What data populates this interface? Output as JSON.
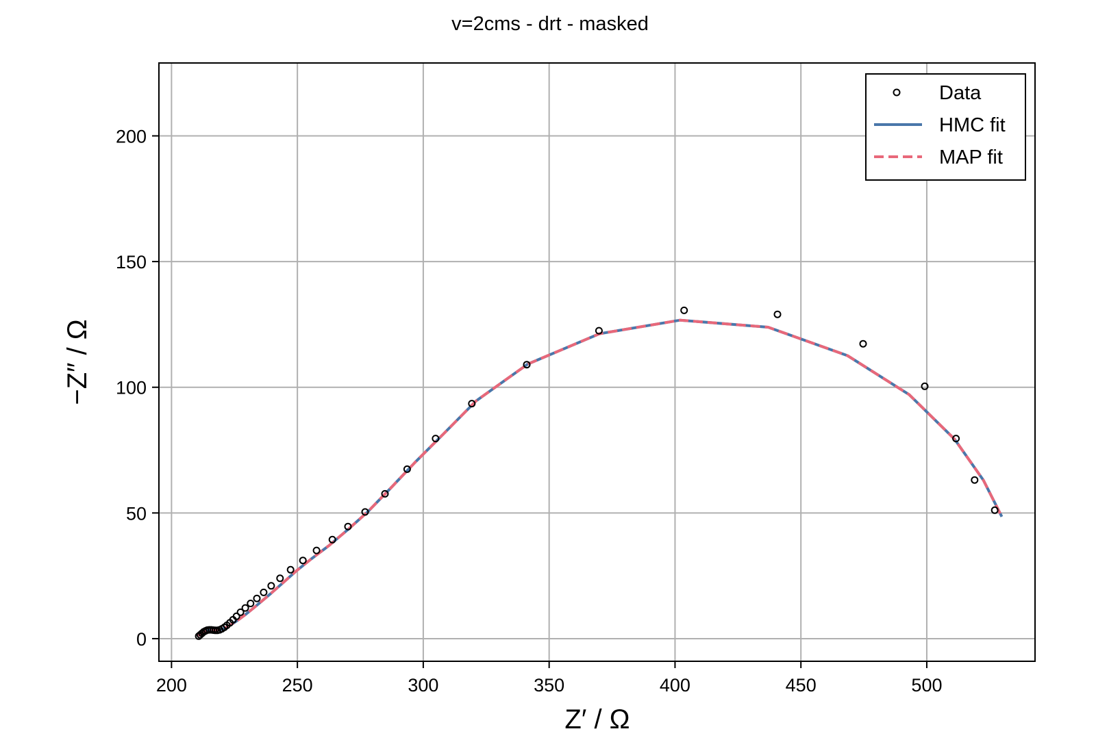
{
  "chart_data": {
    "type": "scatter",
    "title": "v=2cms - drt - masked",
    "xlabel": "Z′ / Ω",
    "ylabel": "−Z″ / Ω",
    "xlim": [
      195,
      543
    ],
    "ylim": [
      -9,
      229
    ],
    "xticks": [
      200,
      250,
      300,
      350,
      400,
      450,
      500
    ],
    "yticks": [
      0,
      50,
      100,
      150,
      200
    ],
    "grid": true,
    "legend_position": "top-right",
    "series": [
      {
        "name": "Data",
        "kind": "scatter",
        "marker": "open-circle",
        "color": "#000000",
        "x": [
          210.8,
          211.4,
          212.1,
          212.8,
          213.5,
          214.2,
          215.0,
          215.8,
          216.6,
          217.4,
          218.2,
          219.1,
          220.0,
          221.0,
          222.0,
          223.2,
          224.4,
          225.8,
          227.4,
          229.3,
          231.4,
          233.9,
          236.6,
          239.6,
          243.1,
          247.3,
          252.2,
          257.6,
          263.9,
          270.1,
          276.9,
          284.8,
          293.6,
          304.9,
          319.3,
          341.1,
          369.8,
          403.6,
          440.7,
          474.7,
          499.2,
          511.6,
          519.0,
          527.0
        ],
        "y": [
          1.0,
          1.5,
          2.1,
          2.7,
          3.1,
          3.4,
          3.5,
          3.5,
          3.4,
          3.3,
          3.3,
          3.5,
          3.9,
          4.5,
          5.3,
          6.3,
          7.5,
          8.9,
          10.5,
          12.2,
          14.0,
          16.0,
          18.4,
          21.0,
          24.0,
          27.4,
          31.1,
          35.1,
          39.4,
          44.6,
          50.4,
          57.6,
          67.4,
          79.6,
          93.5,
          109.0,
          122.5,
          130.6,
          129.0,
          117.3,
          100.4,
          79.6,
          63.1,
          51.1
        ]
      },
      {
        "name": "HMC fit",
        "kind": "line",
        "style": "solid",
        "color": "#4a77aa",
        "x": [
          210.6,
          212.0,
          213.6,
          215.2,
          216.8,
          218.5,
          220.2,
          222.0,
          224.0,
          226.3,
          229.0,
          232.0,
          235.5,
          239.5,
          244.0,
          249.5,
          255.5,
          262.5,
          270.0,
          278.0,
          287.0,
          297.0,
          308.0,
          321.0,
          341.5,
          370.0,
          402.0,
          437.0,
          468.5,
          493.0,
          511.0,
          522.5,
          529.8
        ],
        "y": [
          1.2,
          2.2,
          3.0,
          3.3,
          3.3,
          3.4,
          3.8,
          4.6,
          5.8,
          7.3,
          9.3,
          11.7,
          14.6,
          18.0,
          22.0,
          26.9,
          31.7,
          37.0,
          43.3,
          50.5,
          59.8,
          70.4,
          81.4,
          94.6,
          109.2,
          121.3,
          126.7,
          123.9,
          112.6,
          97.1,
          79.4,
          63.0,
          48.5
        ]
      },
      {
        "name": "MAP fit",
        "kind": "line",
        "style": "dashed",
        "color": "#e8687a",
        "x": [
          210.6,
          212.0,
          213.6,
          215.2,
          216.8,
          218.5,
          220.2,
          222.0,
          224.0,
          226.3,
          229.0,
          232.0,
          235.5,
          239.5,
          244.0,
          249.5,
          255.5,
          262.5,
          270.0,
          278.0,
          287.0,
          297.0,
          308.0,
          321.0,
          341.5,
          370.0,
          402.0,
          437.0,
          468.5,
          493.0,
          511.0,
          522.5,
          529.8
        ],
        "y": [
          1.2,
          2.2,
          3.0,
          3.3,
          3.3,
          3.4,
          3.8,
          4.6,
          5.8,
          7.3,
          9.3,
          11.7,
          14.6,
          18.0,
          22.0,
          26.9,
          31.7,
          37.0,
          43.3,
          50.5,
          59.8,
          70.4,
          81.4,
          94.6,
          109.2,
          121.3,
          126.7,
          123.9,
          112.6,
          97.1,
          79.4,
          63.0,
          48.5
        ]
      }
    ]
  }
}
